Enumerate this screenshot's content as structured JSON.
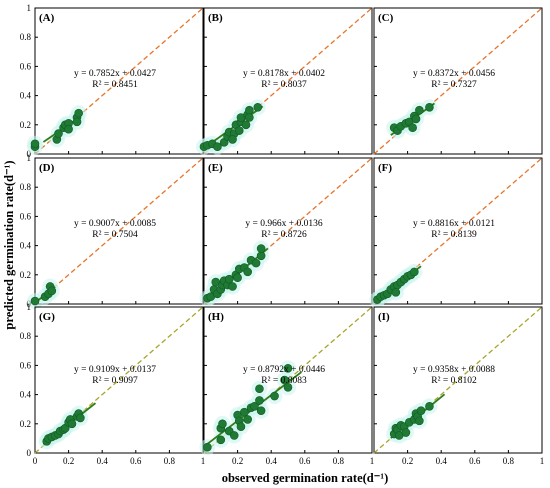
{
  "chart_data": {
    "type": "scatter",
    "xlabel": "observed germination rate(d⁻¹)",
    "ylabel": "predicted germination rate(d⁻¹)",
    "xlim": [
      0,
      1
    ],
    "ylim": [
      0,
      1
    ],
    "x_ticks": [
      "0",
      "0.2",
      "0.4",
      "0.6",
      "0.8",
      "1"
    ],
    "x_ticks_inner": [
      "0.2",
      "0.4",
      "0.6",
      "0.8",
      "1"
    ],
    "y_ticks": [
      "0",
      "0.2",
      "0.4",
      "0.6",
      "0.8",
      "1"
    ],
    "panels": [
      {
        "label": "(A)",
        "eq": "y = 0.7852x + 0.0427",
        "r2": "R² = 0.8451",
        "slope": 0.7852,
        "intercept": 0.0427,
        "dash_color": "#e8742a",
        "fit_x": [
          0.05,
          0.27
        ],
        "points": [
          [
            0.0,
            0.05
          ],
          [
            0.0,
            0.07
          ],
          [
            0.13,
            0.1
          ],
          [
            0.14,
            0.14
          ],
          [
            0.17,
            0.18
          ],
          [
            0.18,
            0.2
          ],
          [
            0.2,
            0.21
          ],
          [
            0.2,
            0.17
          ],
          [
            0.25,
            0.25
          ],
          [
            0.26,
            0.28
          ],
          [
            0.25,
            0.22
          ]
        ]
      },
      {
        "label": "(B)",
        "eq": "y = 0.8178x + 0.0402",
        "r2": "R² = 0.8037",
        "slope": 0.8178,
        "intercept": 0.0402,
        "dash_color": "#e8742a",
        "fit_x": [
          0.0,
          0.35
        ],
        "points": [
          [
            0.0,
            0.05
          ],
          [
            0.02,
            0.06
          ],
          [
            0.05,
            0.07
          ],
          [
            0.08,
            0.05
          ],
          [
            0.12,
            0.08
          ],
          [
            0.14,
            0.12
          ],
          [
            0.15,
            0.15
          ],
          [
            0.18,
            0.14
          ],
          [
            0.19,
            0.2
          ],
          [
            0.22,
            0.22
          ],
          [
            0.22,
            0.25
          ],
          [
            0.25,
            0.2
          ],
          [
            0.26,
            0.27
          ],
          [
            0.27,
            0.3
          ],
          [
            0.27,
            0.25
          ],
          [
            0.32,
            0.32
          ],
          [
            0.21,
            0.16
          ],
          [
            0.17,
            0.1
          ]
        ]
      },
      {
        "label": "(C)",
        "eq": "y = 0.8372x + 0.0456",
        "r2": "R² = 0.7327",
        "slope": 0.8372,
        "intercept": 0.0456,
        "dash_color": "#e8742a",
        "fit_x": [
          0.1,
          0.36
        ],
        "points": [
          [
            0.12,
            0.18
          ],
          [
            0.14,
            0.16
          ],
          [
            0.16,
            0.19
          ],
          [
            0.19,
            0.21
          ],
          [
            0.21,
            0.22
          ],
          [
            0.23,
            0.18
          ],
          [
            0.24,
            0.26
          ],
          [
            0.25,
            0.24
          ],
          [
            0.27,
            0.3
          ],
          [
            0.33,
            0.32
          ]
        ]
      },
      {
        "label": "(D)",
        "eq": "y = 0.9007x + 0.0085",
        "r2": "R² = 0.7504",
        "slope": 0.9007,
        "intercept": 0.0085,
        "dash_color": "#e8742a",
        "fit_x": [
          0.0,
          0.12
        ],
        "points": [
          [
            0.0,
            0.02
          ],
          [
            0.06,
            0.05
          ],
          [
            0.08,
            0.07
          ],
          [
            0.09,
            0.12
          ],
          [
            0.1,
            0.09
          ]
        ]
      },
      {
        "label": "(E)",
        "eq": "y = 0.966x + 0.0136",
        "r2": "R² = 0.8726",
        "slope": 0.966,
        "intercept": 0.0136,
        "dash_color": "#e8742a",
        "fit_x": [
          0.02,
          0.38
        ],
        "points": [
          [
            0.02,
            0.04
          ],
          [
            0.04,
            0.05
          ],
          [
            0.06,
            0.1
          ],
          [
            0.07,
            0.15
          ],
          [
            0.08,
            0.07
          ],
          [
            0.1,
            0.1
          ],
          [
            0.11,
            0.13
          ],
          [
            0.12,
            0.16
          ],
          [
            0.14,
            0.13
          ],
          [
            0.15,
            0.17
          ],
          [
            0.17,
            0.12
          ],
          [
            0.19,
            0.2
          ],
          [
            0.2,
            0.18
          ],
          [
            0.21,
            0.24
          ],
          [
            0.24,
            0.25
          ],
          [
            0.26,
            0.22
          ],
          [
            0.28,
            0.3
          ],
          [
            0.31,
            0.28
          ],
          [
            0.34,
            0.33
          ],
          [
            0.34,
            0.38
          ]
        ]
      },
      {
        "label": "(F)",
        "eq": "y = 0.8816x + 0.0121",
        "r2": "R² = 0.8139",
        "slope": 0.8816,
        "intercept": 0.0121,
        "dash_color": "#e8742a",
        "fit_x": [
          0.0,
          0.28
        ],
        "points": [
          [
            0.02,
            0.03
          ],
          [
            0.04,
            0.05
          ],
          [
            0.06,
            0.06
          ],
          [
            0.08,
            0.07
          ],
          [
            0.1,
            0.1
          ],
          [
            0.12,
            0.12
          ],
          [
            0.14,
            0.13
          ],
          [
            0.16,
            0.15
          ],
          [
            0.18,
            0.17
          ],
          [
            0.2,
            0.19
          ],
          [
            0.22,
            0.2
          ],
          [
            0.24,
            0.22
          ],
          [
            0.13,
            0.08
          ]
        ]
      },
      {
        "label": "(G)",
        "eq": "y = 0.9109x + 0.0137",
        "r2": "R² = 0.9097",
        "slope": 0.9109,
        "intercept": 0.0137,
        "dash_color": "#a8a52a",
        "fit_x": [
          0.05,
          0.36
        ],
        "points": [
          [
            0.07,
            0.08
          ],
          [
            0.08,
            0.1
          ],
          [
            0.1,
            0.11
          ],
          [
            0.12,
            0.12
          ],
          [
            0.14,
            0.13
          ],
          [
            0.15,
            0.15
          ],
          [
            0.17,
            0.16
          ],
          [
            0.18,
            0.17
          ],
          [
            0.2,
            0.21
          ],
          [
            0.21,
            0.23
          ],
          [
            0.22,
            0.2
          ],
          [
            0.25,
            0.25
          ],
          [
            0.26,
            0.27
          ],
          [
            0.27,
            0.24
          ]
        ]
      },
      {
        "label": "(H)",
        "eq": "y = 0.8792x + 0.0446",
        "r2": "R² = 0.8083",
        "slope": 0.8792,
        "intercept": 0.0446,
        "dash_color": "#a8a52a",
        "fit_x": [
          0.02,
          0.58
        ],
        "points": [
          [
            0.02,
            0.04
          ],
          [
            0.1,
            0.09
          ],
          [
            0.1,
            0.17
          ],
          [
            0.11,
            0.2
          ],
          [
            0.15,
            0.15
          ],
          [
            0.18,
            0.12
          ],
          [
            0.2,
            0.26
          ],
          [
            0.21,
            0.22
          ],
          [
            0.22,
            0.18
          ],
          [
            0.24,
            0.28
          ],
          [
            0.26,
            0.23
          ],
          [
            0.28,
            0.31
          ],
          [
            0.3,
            0.32
          ],
          [
            0.33,
            0.36
          ],
          [
            0.33,
            0.44
          ],
          [
            0.34,
            0.29
          ],
          [
            0.5,
            0.58
          ],
          [
            0.5,
            0.45
          ],
          [
            0.48,
            0.5
          ],
          [
            0.42,
            0.39
          ]
        ]
      },
      {
        "label": "(I)",
        "eq": "y = 0.9358x + 0.0088",
        "r2": "R² = 0.8102",
        "slope": 0.9358,
        "intercept": 0.0088,
        "dash_color": "#a8a52a",
        "fit_x": [
          0.1,
          0.42
        ],
        "points": [
          [
            0.12,
            0.13
          ],
          [
            0.13,
            0.17
          ],
          [
            0.14,
            0.16
          ],
          [
            0.15,
            0.12
          ],
          [
            0.16,
            0.19
          ],
          [
            0.18,
            0.18
          ],
          [
            0.19,
            0.14
          ],
          [
            0.21,
            0.21
          ],
          [
            0.24,
            0.23
          ],
          [
            0.25,
            0.27
          ],
          [
            0.26,
            0.25
          ],
          [
            0.27,
            0.22
          ],
          [
            0.28,
            0.29
          ],
          [
            0.33,
            0.32
          ]
        ]
      }
    ]
  }
}
